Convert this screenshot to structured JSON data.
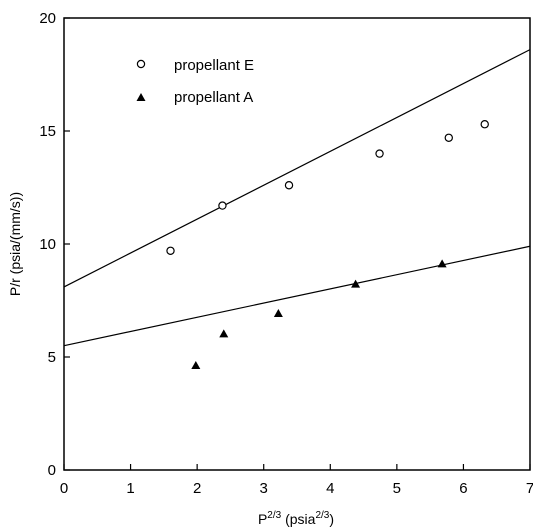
{
  "chart_data": {
    "type": "scatter",
    "xlabel": "P",
    "xlabel_sup": "2/3",
    "xlabel_unit": "(psia",
    "xlabel_unit_sup": "2/3",
    "xlabel_close": ")",
    "ylabel": "P/r (psia/(mm/s))",
    "xlim": [
      0,
      7
    ],
    "ylim": [
      0,
      20
    ],
    "xticks": [
      0,
      1,
      2,
      3,
      4,
      5,
      6,
      7
    ],
    "yticks": [
      0,
      5,
      10,
      15,
      20
    ],
    "grid": false,
    "legend_position": "top-left",
    "series": [
      {
        "name": "propellant E",
        "marker": "open-circle",
        "points": [
          {
            "x": 1.6,
            "y": 9.7
          },
          {
            "x": 2.38,
            "y": 11.7
          },
          {
            "x": 3.38,
            "y": 12.6
          },
          {
            "x": 4.74,
            "y": 14.0
          },
          {
            "x": 5.78,
            "y": 14.7
          },
          {
            "x": 6.32,
            "y": 15.3
          }
        ],
        "fit_line": {
          "x": [
            0,
            7
          ],
          "y": [
            8.1,
            18.6
          ]
        }
      },
      {
        "name": "propellant A",
        "marker": "filled-triangle",
        "points": [
          {
            "x": 1.98,
            "y": 4.6
          },
          {
            "x": 2.4,
            "y": 6.0
          },
          {
            "x": 3.22,
            "y": 6.9
          },
          {
            "x": 4.38,
            "y": 8.2
          },
          {
            "x": 5.68,
            "y": 9.1
          }
        ],
        "fit_line": {
          "x": [
            0,
            7
          ],
          "y": [
            5.5,
            9.9
          ]
        }
      }
    ]
  }
}
